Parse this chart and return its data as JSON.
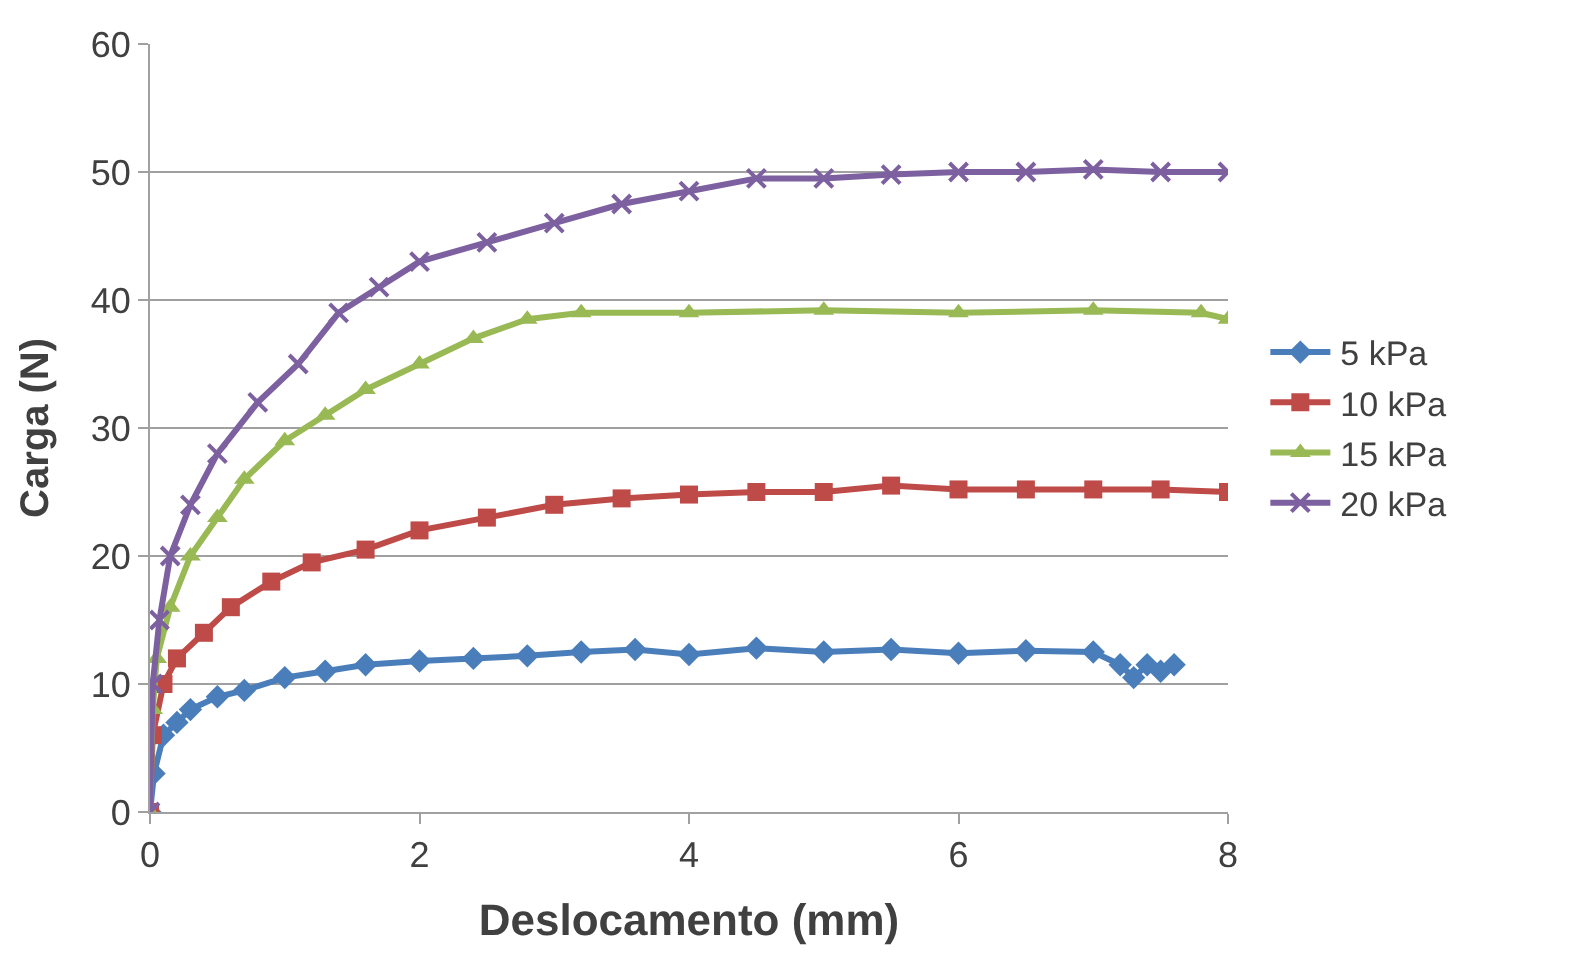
{
  "chart_data": {
    "type": "line",
    "xlabel": "Deslocamento (mm)",
    "ylabel": "Carga (N)",
    "xlim": [
      0,
      8
    ],
    "xticks": [
      0,
      2,
      4,
      6,
      8
    ],
    "ylim": [
      0,
      60
    ],
    "yticks": [
      0,
      10,
      20,
      30,
      40,
      50,
      60
    ],
    "grid": "y",
    "legend": "right",
    "line_style": "solid",
    "series": [
      {
        "name": "5 kPa",
        "color": "#4a7ebb",
        "marker": "diamond",
        "x": [
          0,
          0.03,
          0.1,
          0.2,
          0.3,
          0.5,
          0.7,
          1.0,
          1.3,
          1.6,
          2.0,
          2.4,
          2.8,
          3.2,
          3.6,
          4.0,
          4.5,
          5.0,
          5.5,
          6.0,
          6.5,
          7.0,
          7.2,
          7.3,
          7.4,
          7.5,
          7.6
        ],
        "values": [
          0,
          3,
          6,
          7,
          8,
          9,
          9.5,
          10.5,
          11,
          11.5,
          11.8,
          12,
          12.2,
          12.5,
          12.7,
          12.3,
          12.8,
          12.5,
          12.7,
          12.4,
          12.6,
          12.5,
          11.5,
          10.5,
          11.5,
          11,
          11.5
        ]
      },
      {
        "name": "10 kPa",
        "color": "#be4b48",
        "marker": "square",
        "x": [
          0,
          0.02,
          0.1,
          0.2,
          0.4,
          0.6,
          0.9,
          1.2,
          1.6,
          2.0,
          2.5,
          3.0,
          3.5,
          4.0,
          4.5,
          5.0,
          5.5,
          6.0,
          6.5,
          7.0,
          7.5,
          8.0
        ],
        "values": [
          0,
          6,
          10,
          12,
          14,
          16,
          18,
          19.5,
          20.5,
          22,
          23,
          24,
          24.5,
          24.8,
          25,
          25,
          25.5,
          25.2,
          25.2,
          25.2,
          25.2,
          25
        ]
      },
      {
        "name": "15 kPa",
        "color": "#98b954",
        "marker": "triangle",
        "x": [
          0,
          0.02,
          0.05,
          0.15,
          0.3,
          0.5,
          0.7,
          1.0,
          1.3,
          1.6,
          2.0,
          2.4,
          2.8,
          3.2,
          4.0,
          5.0,
          6.0,
          7.0,
          7.8,
          8.0
        ],
        "values": [
          0,
          8,
          12,
          16,
          20,
          23,
          26,
          29,
          31,
          33,
          35,
          37,
          38.5,
          39,
          39,
          39.2,
          39,
          39.2,
          39,
          38.5
        ]
      },
      {
        "name": "20 kPa",
        "color": "#7d60a0",
        "marker": "cross",
        "x": [
          0,
          0.02,
          0.07,
          0.15,
          0.3,
          0.5,
          0.8,
          1.1,
          1.4,
          1.7,
          2.0,
          2.5,
          3.0,
          3.5,
          4.0,
          4.5,
          5.0,
          5.5,
          6.0,
          6.5,
          7.0,
          7.5,
          8.0
        ],
        "values": [
          0,
          10,
          15,
          20,
          24,
          28,
          32,
          35,
          39,
          41,
          43,
          44.5,
          46,
          47.5,
          48.5,
          49.5,
          49.5,
          49.8,
          50,
          50,
          50.2,
          50,
          50
        ]
      }
    ]
  }
}
